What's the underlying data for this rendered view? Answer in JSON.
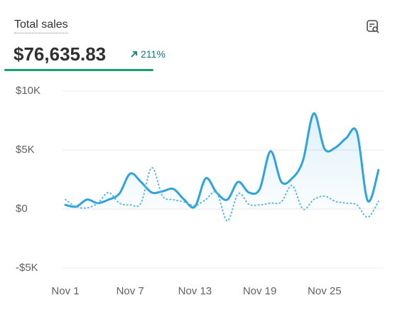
{
  "header": {
    "title": "Total sales",
    "total": "$76,635.83",
    "change": "211%"
  },
  "chart_data": {
    "type": "line",
    "x": [
      "Nov 1",
      null,
      null,
      null,
      null,
      null,
      "Nov 7",
      null,
      null,
      null,
      null,
      null,
      "Nov 13",
      null,
      null,
      null,
      null,
      null,
      "Nov 19",
      null,
      null,
      null,
      null,
      null,
      "Nov 25",
      null,
      null,
      null,
      null,
      null
    ],
    "series": [
      {
        "color": "#2ea3dd",
        "style": "solid",
        "values": [
          350,
          200,
          800,
          500,
          800,
          1300,
          3000,
          2300,
          1400,
          1500,
          1700,
          800,
          200,
          2600,
          1400,
          800,
          2300,
          1400,
          1700,
          4900,
          2300,
          2600,
          4100,
          8100,
          5100,
          5200,
          6000,
          6500,
          700,
          3300
        ]
      },
      {
        "color": "#5ab6e6",
        "style": "dotted",
        "values": [
          800,
          200,
          100,
          500,
          1400,
          500,
          350,
          500,
          3500,
          1100,
          800,
          600,
          300,
          800,
          1400,
          -1000,
          1300,
          400,
          350,
          500,
          600,
          2000,
          0,
          800,
          1100,
          650,
          500,
          350,
          -700,
          650
        ]
      }
    ],
    "ylim": [
      -5000,
      10000
    ],
    "yticks": [
      {
        "value": -5000,
        "label": "-$5K"
      },
      {
        "value": 0,
        "label": "$0"
      },
      {
        "value": 5000,
        "label": "$5K"
      },
      {
        "value": 10000,
        "label": "$10K"
      }
    ],
    "grid": true
  }
}
